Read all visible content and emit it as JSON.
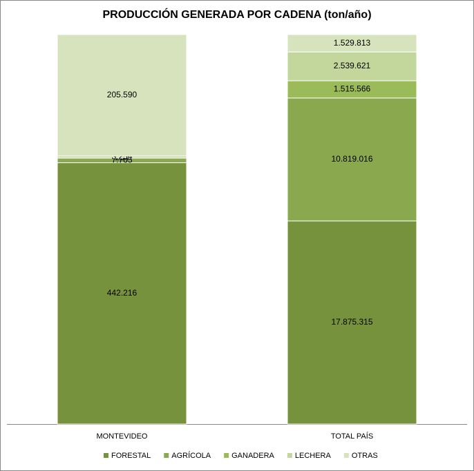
{
  "chart_data": {
    "type": "bar",
    "stacking": "percent",
    "title": "PRODUCCIÓN GENERADA POR CADENA (ton/año)",
    "categories": [
      "MONTEVIDEO",
      "TOTAL PAÍS"
    ],
    "series": [
      {
        "name": "FORESTAL",
        "color": "#76923c",
        "values": [
          442216,
          17875315
        ],
        "value_labels": [
          "442.216",
          "17.875.315"
        ]
      },
      {
        "name": "AGRÍCOLA",
        "color": "#8aa84e",
        "values": [
          7765,
          10819016
        ],
        "value_labels": [
          "7.765",
          "10.819.016"
        ]
      },
      {
        "name": "GANADERA",
        "color": "#9bbb59",
        "values": [
          254,
          1515566
        ],
        "value_labels": [
          "254",
          "1.515.566"
        ]
      },
      {
        "name": "LECHERA",
        "color": "#c3d69b",
        "values": [
          3254,
          2539621
        ],
        "value_labels": [
          "3.254",
          "2.539.621"
        ]
      },
      {
        "name": "OTRAS",
        "color": "#d6e3bc",
        "values": [
          205590,
          1529813
        ],
        "value_labels": [
          "205.590",
          "1.529.813"
        ]
      }
    ]
  }
}
